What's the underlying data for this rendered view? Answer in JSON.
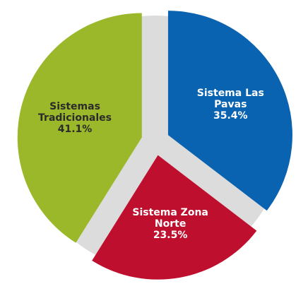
{
  "chart_data": {
    "type": "pie",
    "categories": [
      "Sistema Las Pavas",
      "Sistema Zona Norte",
      "Sistemas Tradicionales"
    ],
    "values": [
      35.4,
      23.5,
      41.1
    ],
    "value_labels": [
      "35.4%",
      "23.5%",
      "41.1%"
    ],
    "colors": [
      "#0a63b0",
      "#bf0f2e",
      "#9ab82a"
    ]
  }
}
